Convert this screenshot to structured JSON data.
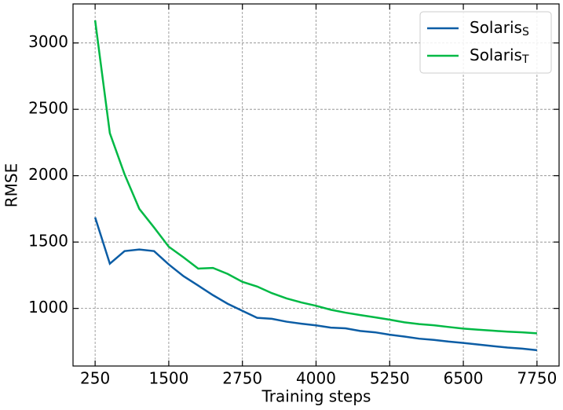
{
  "chart_data": {
    "type": "line",
    "x_label": "Training steps",
    "y_label": "RMSE",
    "x": [
      250,
      500,
      750,
      1000,
      1250,
      1500,
      1750,
      2000,
      2250,
      2500,
      2750,
      3000,
      3250,
      3500,
      3750,
      4000,
      4250,
      4500,
      4750,
      5000,
      5250,
      5500,
      5750,
      6000,
      6250,
      6500,
      6750,
      7000,
      7250,
      7500,
      7750
    ],
    "series": [
      {
        "name": "Solaris",
        "name_subscript": "S",
        "color": "#0C5DA5",
        "values": [
          1686,
          1337,
          1432,
          1444,
          1432,
          1331,
          1243,
          1172,
          1100,
          1035,
          982,
          929,
          922,
          900,
          885,
          872,
          855,
          850,
          830,
          820,
          802,
          788,
          772,
          763,
          750,
          740,
          728,
          716,
          705,
          697,
          685
        ]
      },
      {
        "name": "Solaris",
        "name_subscript": "T",
        "color": "#00B945",
        "values": [
          3170,
          2320,
          2010,
          1750,
          1610,
          1465,
          1385,
          1300,
          1305,
          1260,
          1200,
          1165,
          1115,
          1075,
          1045,
          1020,
          990,
          968,
          950,
          933,
          915,
          895,
          882,
          873,
          860,
          848,
          840,
          832,
          825,
          820,
          812
        ]
      }
    ],
    "xlim": [
      -125,
      8125
    ],
    "ylim": [
      566,
      3294
    ],
    "xticks": [
      250,
      1500,
      2750,
      4000,
      5250,
      6500,
      7750
    ],
    "yticks": [
      1000,
      1500,
      2000,
      2500,
      3000
    ],
    "grid": true,
    "legend": "upper right"
  }
}
